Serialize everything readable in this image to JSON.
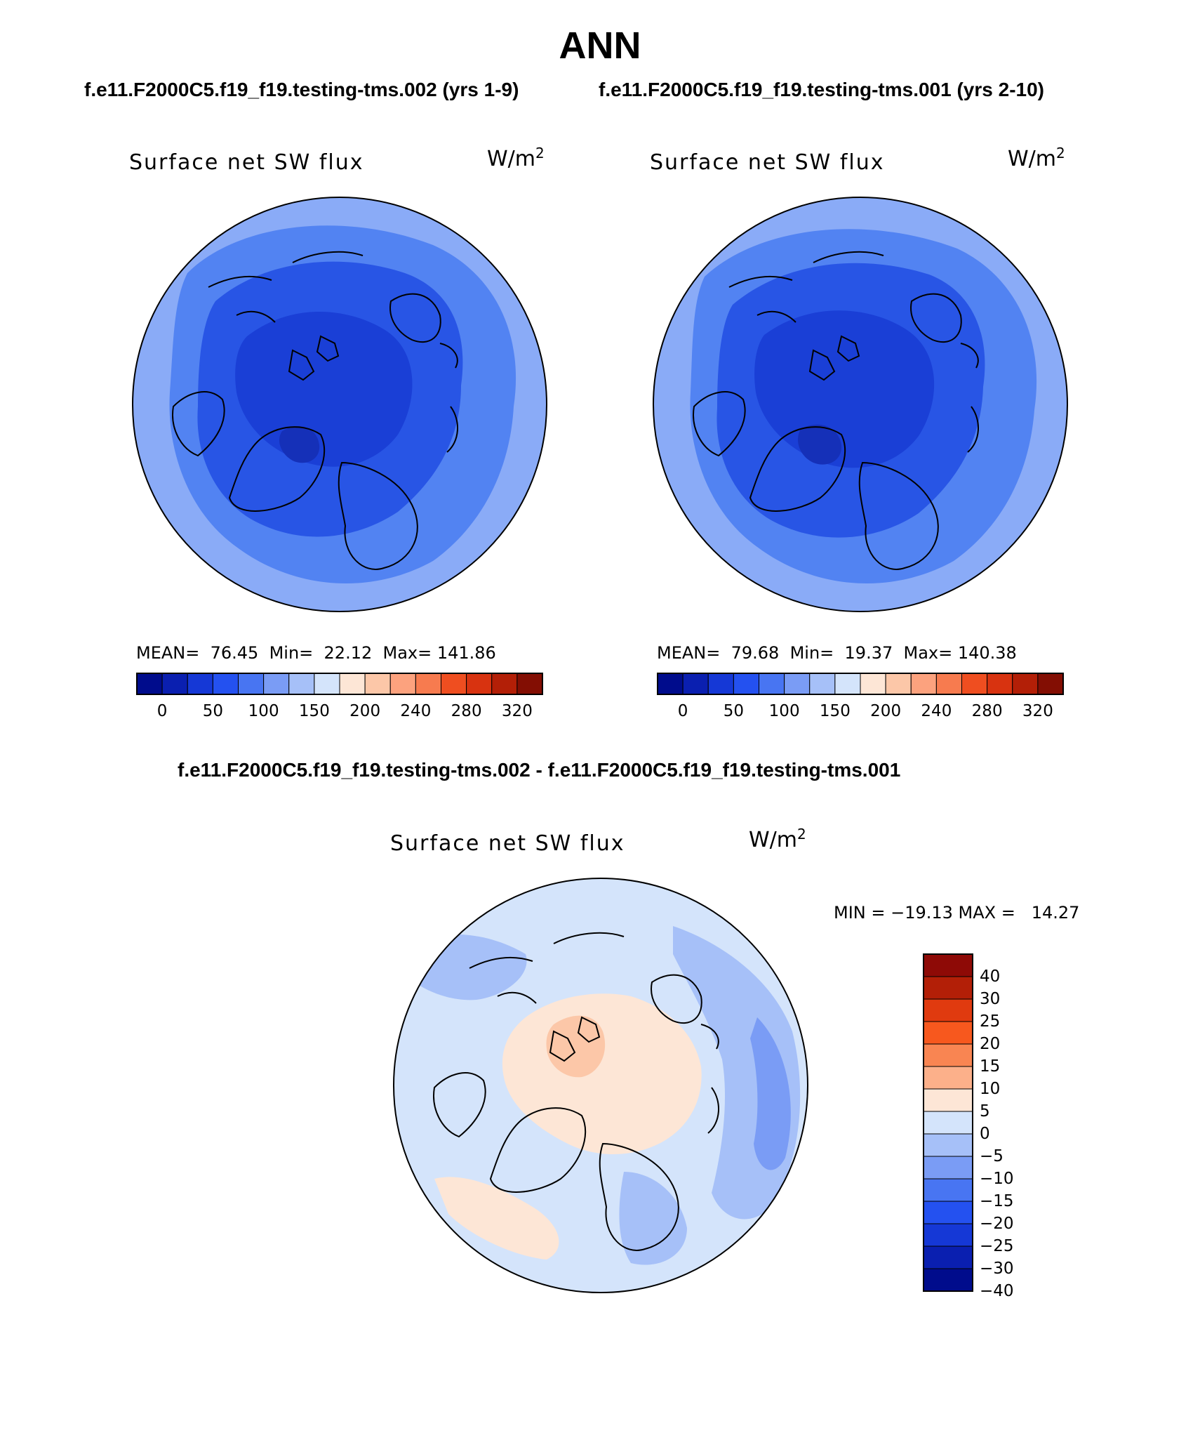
{
  "header": {
    "title": "ANN",
    "subtitle_left": "f.e11.F2000C5.f19_f19.testing-tms.002 (yrs 1-9)",
    "subtitle_right": "f.e11.F2000C5.f19_f19.testing-tms.001 (yrs 2-10)",
    "diff_title": "f.e11.F2000C5.f19_f19.testing-tms.002 - f.e11.F2000C5.f19_f19.testing-tms.001"
  },
  "panels": [
    {
      "variable": "Surface net SW flux",
      "units_base": "W/m",
      "units_exp": "2",
      "stats_text": "MEAN=  76.45  Min=  22.12  Max= 141.86",
      "stats": {
        "mean": 76.45,
        "min": 22.12,
        "max": 141.86
      },
      "region_colors": {
        "ocean_outer": "#8aabf7",
        "ocean_mid": "#5283f2",
        "arctic": "#2855e5",
        "central": "#1a3fd6",
        "greenland_core": "#1530b8"
      }
    },
    {
      "variable": "Surface net SW flux",
      "units_base": "W/m",
      "units_exp": "2",
      "stats_text": "MEAN=  79.68  Min=  19.37  Max= 140.38",
      "stats": {
        "mean": 79.68,
        "min": 19.37,
        "max": 140.38
      },
      "region_colors": {
        "ocean_outer": "#8aabf7",
        "ocean_mid": "#5283f2",
        "arctic": "#2855e5",
        "central": "#1a3fd6",
        "greenland_core": "#1530b8"
      }
    }
  ],
  "colorbar_abs": {
    "colors": [
      "#000c8c",
      "#0a1fb0",
      "#1538d6",
      "#2451f0",
      "#4875f2",
      "#7a9cf5",
      "#a6c0f8",
      "#d4e4fb",
      "#fde6d6",
      "#fcc7a8",
      "#fca27e",
      "#f77b4f",
      "#ef4e20",
      "#d83310",
      "#b31f07",
      "#830e03"
    ],
    "tick_labels": [
      "0",
      "50",
      "100",
      "150",
      "200",
      "240",
      "280",
      "320"
    ],
    "tick_boundaries": [
      1,
      3,
      5,
      7,
      9,
      11,
      13,
      15
    ]
  },
  "diff_panel": {
    "variable": "Surface net SW flux",
    "units_base": "W/m",
    "units_exp": "2",
    "stats_text": "MIN = −19.13 MAX =   14.27",
    "stats": {
      "min": -19.13,
      "max": 14.27
    },
    "region_colors": {
      "background": "#d4e4fb",
      "neg_weak": "#a6c0f8",
      "neg_mid": "#7a9cf5",
      "pos_weak": "#fde6d6",
      "pos_mid": "#fcc7a8"
    }
  },
  "colorbar_diff": {
    "colors": [
      "#8e0a06",
      "#b31f07",
      "#e03a0f",
      "#f7581e",
      "#f98552",
      "#fcb08a",
      "#fde6d6",
      "#d4e4fb",
      "#a6c0f8",
      "#7a9cf5",
      "#4875f2",
      "#2451f0",
      "#1538d6",
      "#0a1fb0",
      "#000c8c"
    ],
    "tick_labels": [
      "40",
      "30",
      "25",
      "20",
      "15",
      "10",
      "5",
      "0",
      "−5",
      "−10",
      "−15",
      "−20",
      "−25",
      "−30",
      "−40"
    ]
  }
}
